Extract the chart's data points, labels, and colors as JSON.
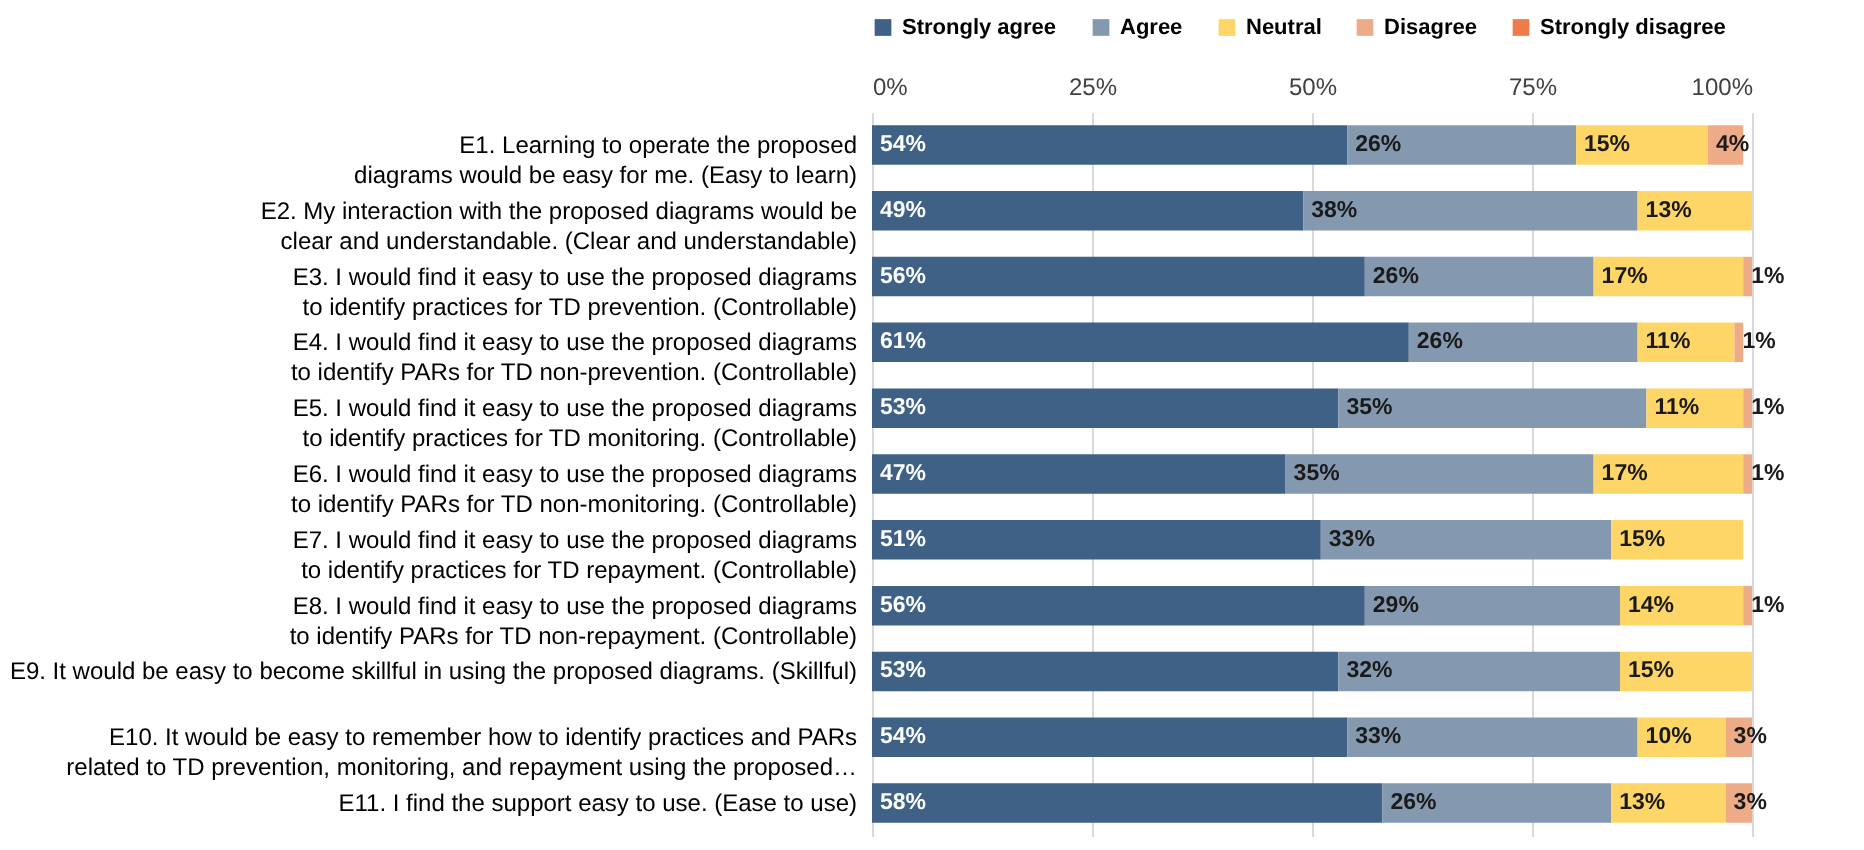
{
  "chart_data": {
    "type": "bar",
    "orientation": "horizontal",
    "stacked": true,
    "legend": "top",
    "grid": "x",
    "categories": [
      "E1. Learning to operate the proposed diagrams would be easy for me. (Easy to learn)",
      "E2. My interaction with the proposed diagrams would be clear and understandable. (Clear and understandable)",
      "E3. I would find it easy to use the proposed diagrams to identify practices for TD prevention. (Controllable)",
      "E4. I would find it easy to use the proposed diagrams to identify PARs for TD non-prevention. (Controllable)",
      "E5. I would find it easy to use the proposed diagrams to identify practices for TD monitoring. (Controllable)",
      "E6. I would find it easy to use the proposed diagrams to identify PARs for TD non-monitoring. (Controllable)",
      "E7. I would find it easy to use the proposed diagrams to identify practices for TD repayment. (Controllable)",
      "E8. I would find it easy to use the proposed diagrams to identify PARs for TD non-repayment. (Controllable)",
      "E9. It would be easy to become skillful in using the proposed diagrams. (Skillful)",
      "E10. It would be easy to remember how to identify practices and PARs related to TD prevention, monitoring, and repayment using the proposed…",
      "E11. I find the support easy to use. (Ease to use)"
    ],
    "xlim": [
      0,
      100
    ],
    "xticks": [
      {
        "value": 0,
        "label": "0%"
      },
      {
        "value": 25,
        "label": "25%"
      },
      {
        "value": 50,
        "label": "50%"
      },
      {
        "value": 75,
        "label": "75%"
      },
      {
        "value": 100,
        "label": "100%"
      }
    ],
    "series": [
      {
        "name": "Strongly agree",
        "color": "#3e6185",
        "values": [
          54,
          49,
          56,
          61,
          53,
          47,
          51,
          56,
          53,
          54,
          58
        ],
        "value_labels": [
          "54%",
          "49%",
          "56%",
          "61%",
          "53%",
          "47%",
          "51%",
          "56%",
          "53%",
          "54%",
          "58%"
        ]
      },
      {
        "name": "Agree",
        "color": "#8499b0",
        "values": [
          26,
          38,
          26,
          26,
          35,
          35,
          33,
          29,
          32,
          33,
          26
        ],
        "value_labels": [
          "26%",
          "38%",
          "26%",
          "26%",
          "35%",
          "35%",
          "33%",
          "29%",
          "32%",
          "33%",
          "26%"
        ]
      },
      {
        "name": "Neutral",
        "color": "#fdd667",
        "values": [
          15,
          13,
          17,
          11,
          11,
          17,
          15,
          14,
          15,
          10,
          13
        ],
        "value_labels": [
          "15%",
          "13%",
          "17%",
          "11%",
          "11%",
          "17%",
          "15%",
          "14%",
          "15%",
          "10%",
          "13%"
        ]
      },
      {
        "name": "Disagree",
        "color": "#eeab88",
        "values": [
          4,
          null,
          1,
          1,
          1,
          1,
          null,
          1,
          null,
          3,
          3
        ],
        "value_labels": [
          "4%",
          null,
          "1%",
          "1%",
          "1%",
          "1%",
          null,
          "1%",
          null,
          "3%",
          "3%"
        ]
      },
      {
        "name": "Strongly disagree",
        "color": "#f07b4a",
        "values": [
          null,
          null,
          null,
          null,
          null,
          null,
          null,
          null,
          null,
          null,
          null
        ],
        "value_labels": [
          null,
          null,
          null,
          null,
          null,
          null,
          null,
          null,
          null,
          null,
          null
        ]
      }
    ]
  }
}
